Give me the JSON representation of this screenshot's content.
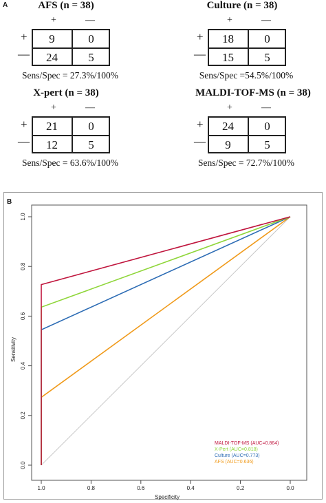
{
  "panel_a": {
    "label": "A",
    "tables": [
      {
        "title": "AFS (n = 38)",
        "col_plus": "+",
        "col_minus": "—",
        "row_plus": "+",
        "row_minus": "—",
        "cells": [
          "9",
          "0",
          "24",
          "5"
        ],
        "sens_spec": "Sens/Spec = 27.3%/100%"
      },
      {
        "title": "Culture (n = 38)",
        "col_plus": "+",
        "col_minus": "—",
        "row_plus": "+",
        "row_minus": "—",
        "cells": [
          "18",
          "0",
          "15",
          "5"
        ],
        "sens_spec": "Sens/Spec =54.5%/100%"
      },
      {
        "title": "X-pert (n = 38)",
        "col_plus": "+",
        "col_minus": "—",
        "row_plus": "+",
        "row_minus": "—",
        "cells": [
          "21",
          "0",
          "12",
          "5"
        ],
        "sens_spec": "Sens/Spec = 63.6%/100%"
      },
      {
        "title": "MALDI-TOF-MS (n = 38)",
        "col_plus": "+",
        "col_minus": "—",
        "row_plus": "+",
        "row_minus": "—",
        "cells": [
          "24",
          "0",
          "9",
          "5"
        ],
        "sens_spec": "Sens/Spec = 72.7%/100%"
      }
    ]
  },
  "panel_b": {
    "label": "B"
  },
  "chart_data": {
    "type": "line",
    "title": "",
    "xlabel": "Specificity",
    "ylabel": "Sensitivity",
    "x_reversed": true,
    "xlim": [
      1.0,
      0.0
    ],
    "ylim": [
      0.0,
      1.0
    ],
    "x_ticks": [
      "1.0",
      "0.8",
      "0.6",
      "0.4",
      "0.2",
      "0.0"
    ],
    "y_ticks": [
      "0.0",
      "0.2",
      "0.4",
      "0.6",
      "0.8",
      "1.0"
    ],
    "grid": false,
    "legend_position": "bottom-right",
    "reference_line": {
      "color": "#c8c8c8",
      "x": [
        1.0,
        0.0
      ],
      "y": [
        0.0,
        1.0
      ]
    },
    "series": [
      {
        "name": "MALDI-TOF-MS (AUC=0.864)",
        "color": "#c0163e",
        "x": [
          1.0,
          1.0,
          0.0
        ],
        "y": [
          0.0,
          0.727,
          1.0
        ]
      },
      {
        "name": "X-Pert (AUC=0.818)",
        "color": "#8fd63a",
        "x": [
          1.0,
          1.0,
          0.0
        ],
        "y": [
          0.0,
          0.636,
          1.0
        ]
      },
      {
        "name": "Culture (AUC=0.773)",
        "color": "#2e6db5",
        "x": [
          1.0,
          1.0,
          0.0
        ],
        "y": [
          0.0,
          0.545,
          1.0
        ]
      },
      {
        "name": "AFS (AUC=0.636)",
        "color": "#f09a1a",
        "x": [
          1.0,
          1.0,
          0.0
        ],
        "y": [
          0.0,
          0.273,
          1.0
        ]
      }
    ]
  }
}
